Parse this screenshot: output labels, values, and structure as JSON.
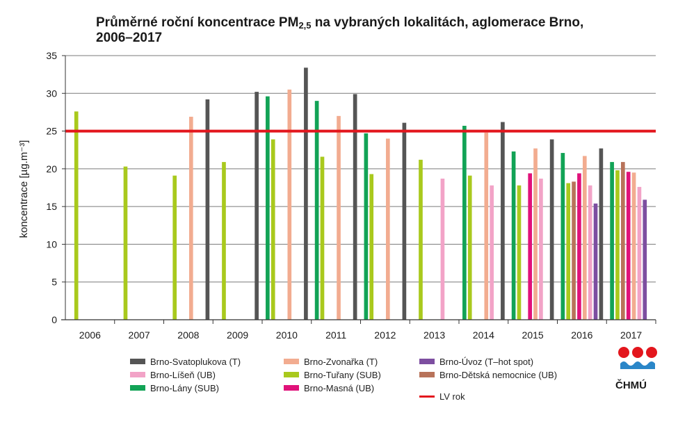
{
  "title": {
    "part1": "Průměrné roční koncentrace PM",
    "sub": "2,5",
    "part2": " na vybraných lokalitách, aglomerace Brno,",
    "line2": "2006–2017"
  },
  "logo_text": "ČHMÚ",
  "chart_data": {
    "type": "bar",
    "ylabel": "koncentrace [µg.m⁻³]",
    "ylim": [
      0,
      35
    ],
    "yticks": [
      0,
      5,
      10,
      15,
      20,
      25,
      30,
      35
    ],
    "grid": true,
    "categories": [
      "2006",
      "2007",
      "2008",
      "2009",
      "2010",
      "2011",
      "2012",
      "2013",
      "2014",
      "2015",
      "2016",
      "2017"
    ],
    "series": [
      {
        "name": "Brno-Lány (SUB)",
        "color": "#12a356",
        "values": [
          null,
          null,
          null,
          null,
          29.6,
          29.0,
          24.7,
          null,
          25.7,
          22.3,
          22.1,
          20.9
        ]
      },
      {
        "name": "Brno-Tuřany (SUB)",
        "color": "#a9c91d",
        "values": [
          27.6,
          20.3,
          19.1,
          20.9,
          23.9,
          21.6,
          19.3,
          21.2,
          19.1,
          17.8,
          18.1,
          19.8
        ]
      },
      {
        "name": "Brno-Dětská nemocnice (UB)",
        "color": "#b8735a",
        "values": [
          null,
          null,
          null,
          null,
          null,
          null,
          null,
          null,
          null,
          null,
          18.3,
          20.9
        ]
      },
      {
        "name": "Brno-Masná (UB)",
        "color": "#e0127a",
        "values": [
          null,
          null,
          null,
          null,
          null,
          null,
          null,
          null,
          null,
          19.4,
          19.4,
          19.6
        ]
      },
      {
        "name": "Brno-Zvonařka (T)",
        "color": "#f2ac90",
        "values": [
          null,
          null,
          26.9,
          null,
          30.5,
          27.0,
          24.0,
          null,
          24.8,
          22.7,
          21.7,
          19.5
        ]
      },
      {
        "name": "Brno-Líšeň (UB)",
        "color": "#f2a3c7",
        "values": [
          null,
          null,
          null,
          null,
          null,
          null,
          null,
          18.7,
          17.8,
          18.7,
          17.8,
          17.6
        ]
      },
      {
        "name": "Brno-Úvoz (T–hot spot)",
        "color": "#7d4ea0",
        "values": [
          null,
          null,
          null,
          null,
          null,
          null,
          null,
          null,
          null,
          null,
          15.4,
          15.9
        ]
      },
      {
        "name": "Brno-Svatoplukova (T)",
        "color": "#555555",
        "values": [
          null,
          null,
          29.2,
          30.2,
          33.4,
          29.9,
          26.1,
          null,
          26.2,
          23.9,
          22.7,
          null
        ]
      }
    ],
    "limit_line": {
      "name": "LV rok",
      "value": 25,
      "color": "#e3161d"
    },
    "legend": {
      "placement": "bottom",
      "entries": [
        "Brno-Svatoplukova (T)",
        "Brno-Zvonařka (T)",
        "Brno-Úvoz (T–hot spot)",
        "Brno-Líšeň (UB)",
        "Brno-Tuřany (SUB)",
        "Brno-Dětská nemocnice (UB)",
        "Brno-Lány (SUB)",
        "Brno-Masná (UB)",
        "LV rok"
      ]
    }
  }
}
